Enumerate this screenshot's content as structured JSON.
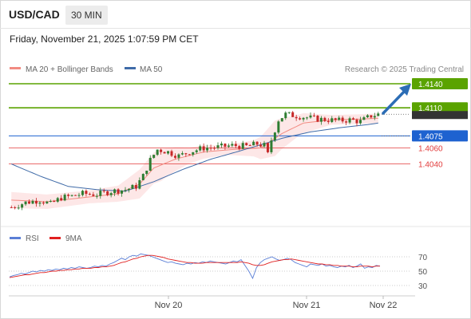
{
  "header": {
    "pair": "USD/CAD",
    "timeframe": "30 MIN",
    "datetime": "Friday, November 21, 2025 1:07:59 PM CET"
  },
  "legend": {
    "ma20": "MA 20 + Bollinger Bands",
    "ma50": "MA 50",
    "credit": "Research © 2025 Trading Central",
    "rsi": "RSI",
    "rsi_ma": "9MA"
  },
  "colors": {
    "candle_up": "#2e7d32",
    "candle_down": "#c62828",
    "ma20": "#f28b82",
    "band_fill": "#fde3e3",
    "ma50": "#3f6ba8",
    "green_level": "#5aa300",
    "blue_level": "#1e62d0",
    "red_level": "#e23b3b",
    "arrow": "#2c6db5",
    "rsi_line": "#5b7fd6",
    "rsi_ma_line": "#e02020"
  },
  "chart_data": [
    {
      "type": "candlestick",
      "x_ticks": [
        "Nov 20",
        "Nov 21",
        "Nov 22"
      ],
      "current_price": 1.4102,
      "levels": [
        {
          "value": 1.414,
          "label": "1.4140",
          "kind": "target"
        },
        {
          "value": 1.411,
          "label": "1.4110",
          "kind": "resistance"
        },
        {
          "value": 1.4075,
          "label": "1.4075",
          "kind": "pivot"
        },
        {
          "value": 1.406,
          "label": "1.4060",
          "kind": "support"
        },
        {
          "value": 1.404,
          "label": "1.4040",
          "kind": "support"
        }
      ],
      "close_path": [
        [
          0,
          1.3986
        ],
        [
          4,
          1.3992
        ],
        [
          8,
          1.3995
        ],
        [
          11,
          1.399
        ],
        [
          14,
          1.3998
        ],
        [
          17,
          1.4
        ],
        [
          20,
          1.4003
        ],
        [
          24,
          1.4002
        ],
        [
          28,
          1.4006
        ],
        [
          32,
          1.4008
        ],
        [
          35,
          1.4012
        ],
        [
          37,
          1.4025
        ],
        [
          39,
          1.4045
        ],
        [
          41,
          1.4058
        ],
        [
          44,
          1.4055
        ],
        [
          47,
          1.405
        ],
        [
          50,
          1.4055
        ],
        [
          54,
          1.406
        ],
        [
          58,
          1.4061
        ],
        [
          62,
          1.4063
        ],
        [
          66,
          1.4062
        ],
        [
          69,
          1.4065
        ],
        [
          71,
          1.4063
        ],
        [
          72,
          1.4052
        ],
        [
          73,
          1.407
        ],
        [
          75,
          1.4095
        ],
        [
          77,
          1.4102
        ],
        [
          80,
          1.41
        ],
        [
          83,
          1.4098
        ],
        [
          86,
          1.4096
        ],
        [
          89,
          1.4095
        ],
        [
          92,
          1.4094
        ],
        [
          95,
          1.4095
        ],
        [
          98,
          1.4093
        ],
        [
          101,
          1.41
        ],
        [
          103,
          1.4102
        ]
      ],
      "ma20_path": [
        [
          0,
          1.3995
        ],
        [
          10,
          1.3993
        ],
        [
          20,
          1.3998
        ],
        [
          30,
          1.4003
        ],
        [
          36,
          1.4015
        ],
        [
          40,
          1.4035
        ],
        [
          46,
          1.4046
        ],
        [
          54,
          1.4055
        ],
        [
          62,
          1.4058
        ],
        [
          70,
          1.406
        ],
        [
          76,
          1.4078
        ],
        [
          82,
          1.4091
        ],
        [
          90,
          1.4095
        ],
        [
          98,
          1.4096
        ],
        [
          103,
          1.4097
        ]
      ],
      "band_width_path": [
        [
          0,
          0.001
        ],
        [
          10,
          0.0009
        ],
        [
          22,
          0.0008
        ],
        [
          30,
          0.001
        ],
        [
          36,
          0.0018
        ],
        [
          42,
          0.002
        ],
        [
          50,
          0.001
        ],
        [
          60,
          0.0006
        ],
        [
          68,
          0.001
        ],
        [
          74,
          0.0022
        ],
        [
          80,
          0.0014
        ],
        [
          90,
          0.0006
        ],
        [
          103,
          0.0006
        ]
      ],
      "ma50_path": [
        [
          0,
          1.404
        ],
        [
          8,
          1.4025
        ],
        [
          16,
          1.4012
        ],
        [
          24,
          1.4008
        ],
        [
          32,
          1.4006
        ],
        [
          40,
          1.4018
        ],
        [
          48,
          1.4033
        ],
        [
          56,
          1.4046
        ],
        [
          64,
          1.4056
        ],
        [
          70,
          1.4064
        ],
        [
          76,
          1.4072
        ],
        [
          84,
          1.408
        ],
        [
          92,
          1.4085
        ],
        [
          100,
          1.4089
        ],
        [
          103,
          1.4091
        ]
      ]
    },
    {
      "type": "line",
      "series": [
        {
          "name": "RSI",
          "values": [
            42,
            44,
            45,
            47,
            46,
            48,
            50,
            49,
            51,
            50,
            52,
            51,
            53,
            52,
            54,
            53,
            55,
            54,
            56,
            55,
            54,
            55,
            57,
            56,
            58,
            57,
            60,
            62,
            65,
            68,
            66,
            70,
            72,
            71,
            74,
            73,
            72,
            70,
            68,
            66,
            64,
            62,
            63,
            61,
            60,
            59,
            61,
            60,
            62,
            61,
            63,
            62,
            64,
            63,
            62,
            61,
            60,
            62,
            64,
            63,
            66,
            58,
            50,
            40,
            55,
            62,
            66,
            68,
            70,
            67,
            65,
            66,
            68,
            66,
            62,
            60,
            58,
            56,
            60,
            59,
            58,
            60,
            57,
            58,
            56,
            55,
            57,
            56,
            58,
            55,
            57,
            60,
            54,
            56,
            55,
            58,
            57
          ]
        },
        {
          "name": "9MA",
          "values": [
            41,
            42,
            43,
            44,
            45,
            45,
            46,
            47,
            48,
            48,
            49,
            50,
            50,
            51,
            51,
            52,
            52,
            53,
            53,
            54,
            54,
            54,
            55,
            55,
            56,
            56,
            57,
            58,
            60,
            62,
            63,
            65,
            67,
            68,
            70,
            71,
            72,
            72,
            71,
            70,
            69,
            67,
            66,
            65,
            64,
            63,
            62,
            62,
            61,
            61,
            61,
            62,
            62,
            62,
            62,
            62,
            62,
            62,
            62,
            62,
            63,
            62,
            61,
            59,
            58,
            58,
            59,
            61,
            63,
            64,
            65,
            66,
            66,
            67,
            66,
            65,
            64,
            63,
            62,
            61,
            60,
            60,
            59,
            59,
            58,
            58,
            57,
            57,
            57,
            56,
            56,
            57,
            57,
            57,
            56,
            57,
            57
          ]
        }
      ],
      "y_ticks": [
        "70",
        "50",
        "30"
      ],
      "ylim": [
        20,
        80
      ]
    }
  ]
}
